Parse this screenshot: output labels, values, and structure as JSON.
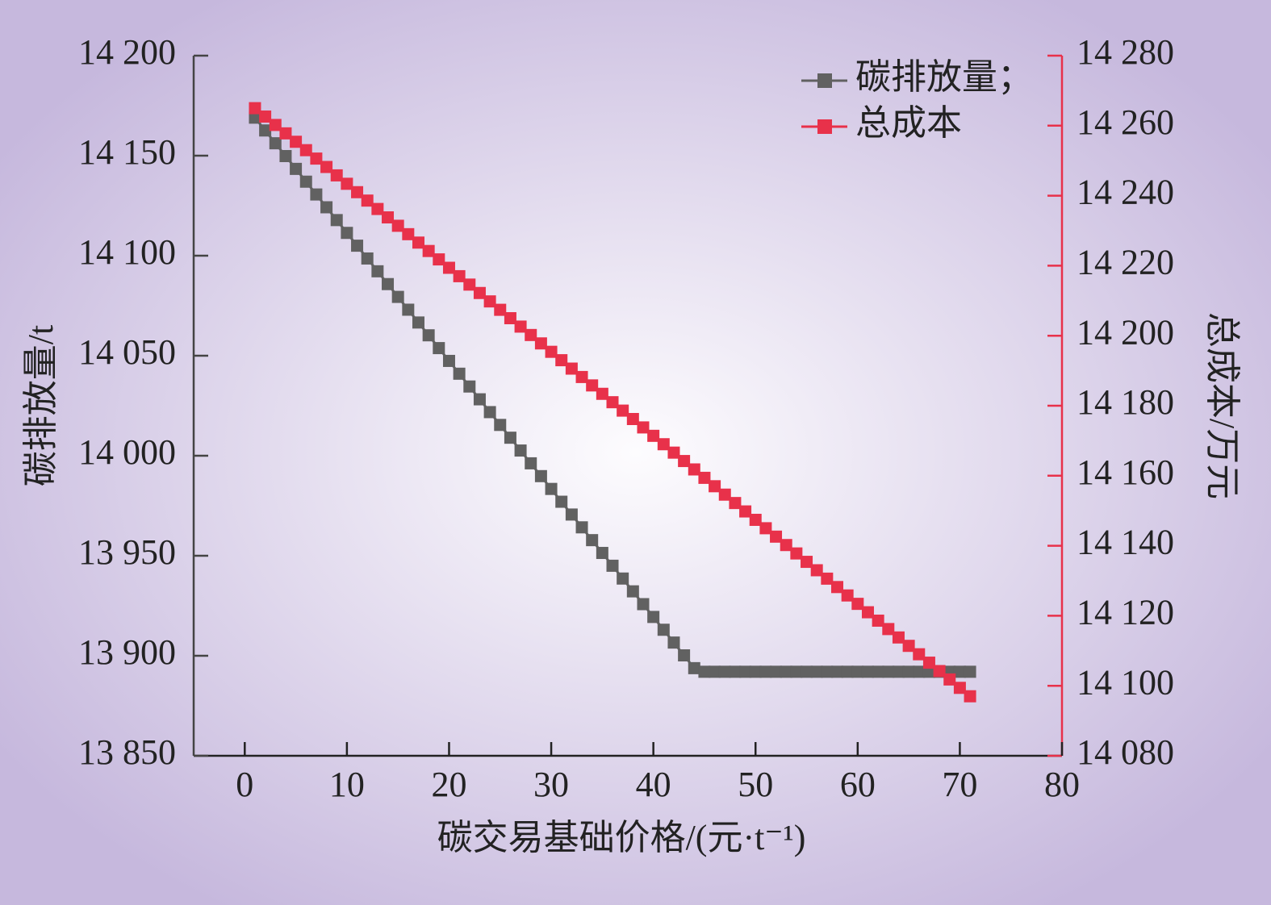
{
  "chart_data": {
    "type": "line",
    "xlabel": "碳交易基础价格/(元·t⁻¹)",
    "ylabel": "碳排放量/t",
    "y2label": "总成本/万元",
    "x": [
      1,
      2,
      3,
      4,
      5,
      6,
      7,
      8,
      9,
      10,
      11,
      12,
      13,
      14,
      15,
      16,
      17,
      18,
      19,
      20,
      21,
      22,
      23,
      24,
      25,
      26,
      27,
      28,
      29,
      30,
      31,
      32,
      33,
      34,
      35,
      36,
      37,
      38,
      39,
      40,
      41,
      42,
      43,
      44,
      45,
      46,
      47,
      48,
      49,
      50,
      51,
      52,
      53,
      54,
      55,
      56,
      57,
      58,
      59,
      60,
      61,
      62,
      63,
      64,
      65,
      66,
      67,
      68,
      69,
      70,
      71
    ],
    "series": [
      {
        "name": "碳排放量；",
        "color": "#616161",
        "axis": "y",
        "values": [
          14169,
          14162.6,
          14156.2,
          14149.8,
          14143.4,
          14137,
          14130.6,
          14124.2,
          14117.8,
          14111.4,
          14105,
          14098.6,
          14092.2,
          14085.8,
          14079.4,
          14073,
          14066.6,
          14060.2,
          14053.8,
          14047.4,
          14041,
          14034.6,
          14028.2,
          14021.8,
          14015.4,
          14009,
          14002.6,
          13996.2,
          13989.8,
          13983.4,
          13977,
          13970.6,
          13964.2,
          13957.8,
          13951.4,
          13945,
          13938.6,
          13932.2,
          13925.8,
          13919.4,
          13913,
          13906.6,
          13900.2,
          13893.8,
          13892,
          13892,
          13892,
          13892,
          13892,
          13892,
          13892,
          13892,
          13892,
          13892,
          13892,
          13892,
          13892,
          13892,
          13892,
          13892,
          13892,
          13892,
          13892,
          13892,
          13892,
          13892,
          13892,
          13892,
          13892,
          13892,
          13892
        ]
      },
      {
        "name": "总成本",
        "color": "#e8314a",
        "axis": "y2",
        "values": [
          14265,
          14262.6,
          14260.2,
          14257.8,
          14255.4,
          14253,
          14250.6,
          14248.2,
          14245.8,
          14243.4,
          14241,
          14238.6,
          14236.2,
          14233.8,
          14231.4,
          14229,
          14226.6,
          14224.2,
          14221.8,
          14219.4,
          14217,
          14214.6,
          14212.2,
          14209.8,
          14207.4,
          14205,
          14202.6,
          14200.2,
          14197.8,
          14195.4,
          14193,
          14190.6,
          14188.2,
          14185.8,
          14183.4,
          14181,
          14178.6,
          14176.2,
          14173.8,
          14171.4,
          14169,
          14166.6,
          14164.2,
          14161.8,
          14159.4,
          14157,
          14154.6,
          14152.2,
          14149.8,
          14147.4,
          14145,
          14142.6,
          14140.2,
          14137.8,
          14135.4,
          14133,
          14130.6,
          14128.2,
          14125.8,
          14123.4,
          14121,
          14118.6,
          14116.2,
          14113.8,
          14111.4,
          14109,
          14106.6,
          14104.2,
          14101.8,
          14099.4,
          14097
        ]
      }
    ],
    "xlim": [
      -5,
      80
    ],
    "xticks": [
      0,
      10,
      20,
      30,
      40,
      50,
      60,
      70,
      80
    ],
    "ylim": [
      13850,
      14200
    ],
    "yticks": [
      {
        "value": 13850,
        "label": "13 850"
      },
      {
        "value": 13900,
        "label": "13 900"
      },
      {
        "value": 13950,
        "label": "13 950"
      },
      {
        "value": 14000,
        "label": "14 000"
      },
      {
        "value": 14050,
        "label": "14 050"
      },
      {
        "value": 14100,
        "label": "14 100"
      },
      {
        "value": 14150,
        "label": "14 150"
      },
      {
        "value": 14200,
        "label": "14 200"
      }
    ],
    "y2lim": [
      14080,
      14280
    ],
    "y2ticks": [
      {
        "value": 14080,
        "label": "14 080"
      },
      {
        "value": 14100,
        "label": "14 100"
      },
      {
        "value": 14120,
        "label": "14 120"
      },
      {
        "value": 14140,
        "label": "14 140"
      },
      {
        "value": 14160,
        "label": "14 160"
      },
      {
        "value": 14180,
        "label": "14 180"
      },
      {
        "value": 14200,
        "label": "14 200"
      },
      {
        "value": 14220,
        "label": "14 220"
      },
      {
        "value": 14240,
        "label": "14 240"
      },
      {
        "value": 14260,
        "label": "14 260"
      },
      {
        "value": 14280,
        "label": "14 280"
      }
    ],
    "y2color": "#e8314a",
    "legend": "top-right"
  }
}
